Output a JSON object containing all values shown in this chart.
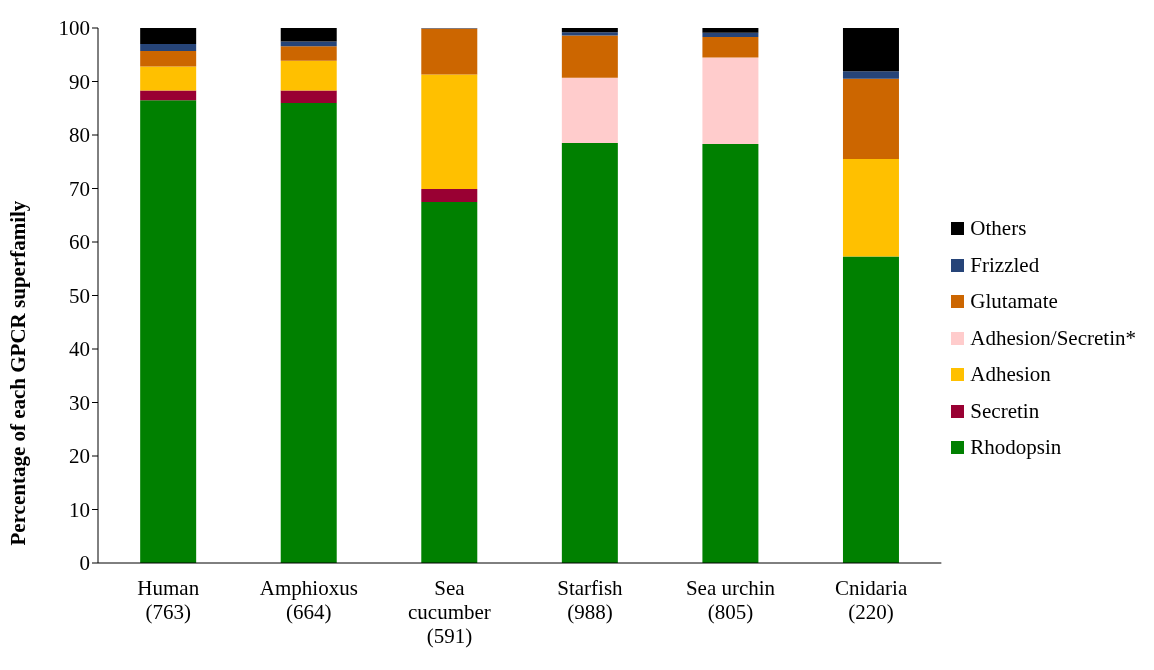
{
  "chart_data": {
    "type": "bar",
    "stacked": true,
    "ylabel": "Percentage of each GPCR superfamily",
    "categories": [
      "Human\n(763)",
      "Amphioxus\n(664)",
      "Sea\ncucumber\n(591)",
      "Starfish\n(988)",
      "Sea urchin\n(805)",
      "Cnidaria\n(220)"
    ],
    "series": [
      {
        "name": "Rhodopsin",
        "color": "#008000",
        "values": [
          86.5,
          86.0,
          67.5,
          78.5,
          78.3,
          57.3
        ]
      },
      {
        "name": "Secretin",
        "color": "#990033",
        "values": [
          1.8,
          2.3,
          2.4,
          0,
          0,
          0
        ]
      },
      {
        "name": "Adhesion",
        "color": "#ffc000",
        "values": [
          4.5,
          5.6,
          21.4,
          0,
          0,
          18.2
        ]
      },
      {
        "name": "Adhesion/Secretin*",
        "color": "#ffcccc",
        "values": [
          0,
          0,
          0,
          12.2,
          16.2,
          0
        ]
      },
      {
        "name": "Glutamate",
        "color": "#cc6600",
        "values": [
          2.9,
          2.7,
          8.6,
          7.9,
          3.8,
          15.0
        ]
      },
      {
        "name": "Frizzled",
        "color": "#264478",
        "values": [
          1.3,
          0.9,
          0.1,
          0.6,
          0.8,
          1.4
        ]
      },
      {
        "name": "Others",
        "color": "#000000",
        "values": [
          3.0,
          2.5,
          0,
          0.8,
          0.9,
          8.1
        ]
      }
    ],
    "ylim": [
      0,
      100
    ],
    "yticks": [
      0,
      10,
      20,
      30,
      40,
      50,
      60,
      70,
      80,
      90,
      100
    ],
    "legend": "right"
  }
}
